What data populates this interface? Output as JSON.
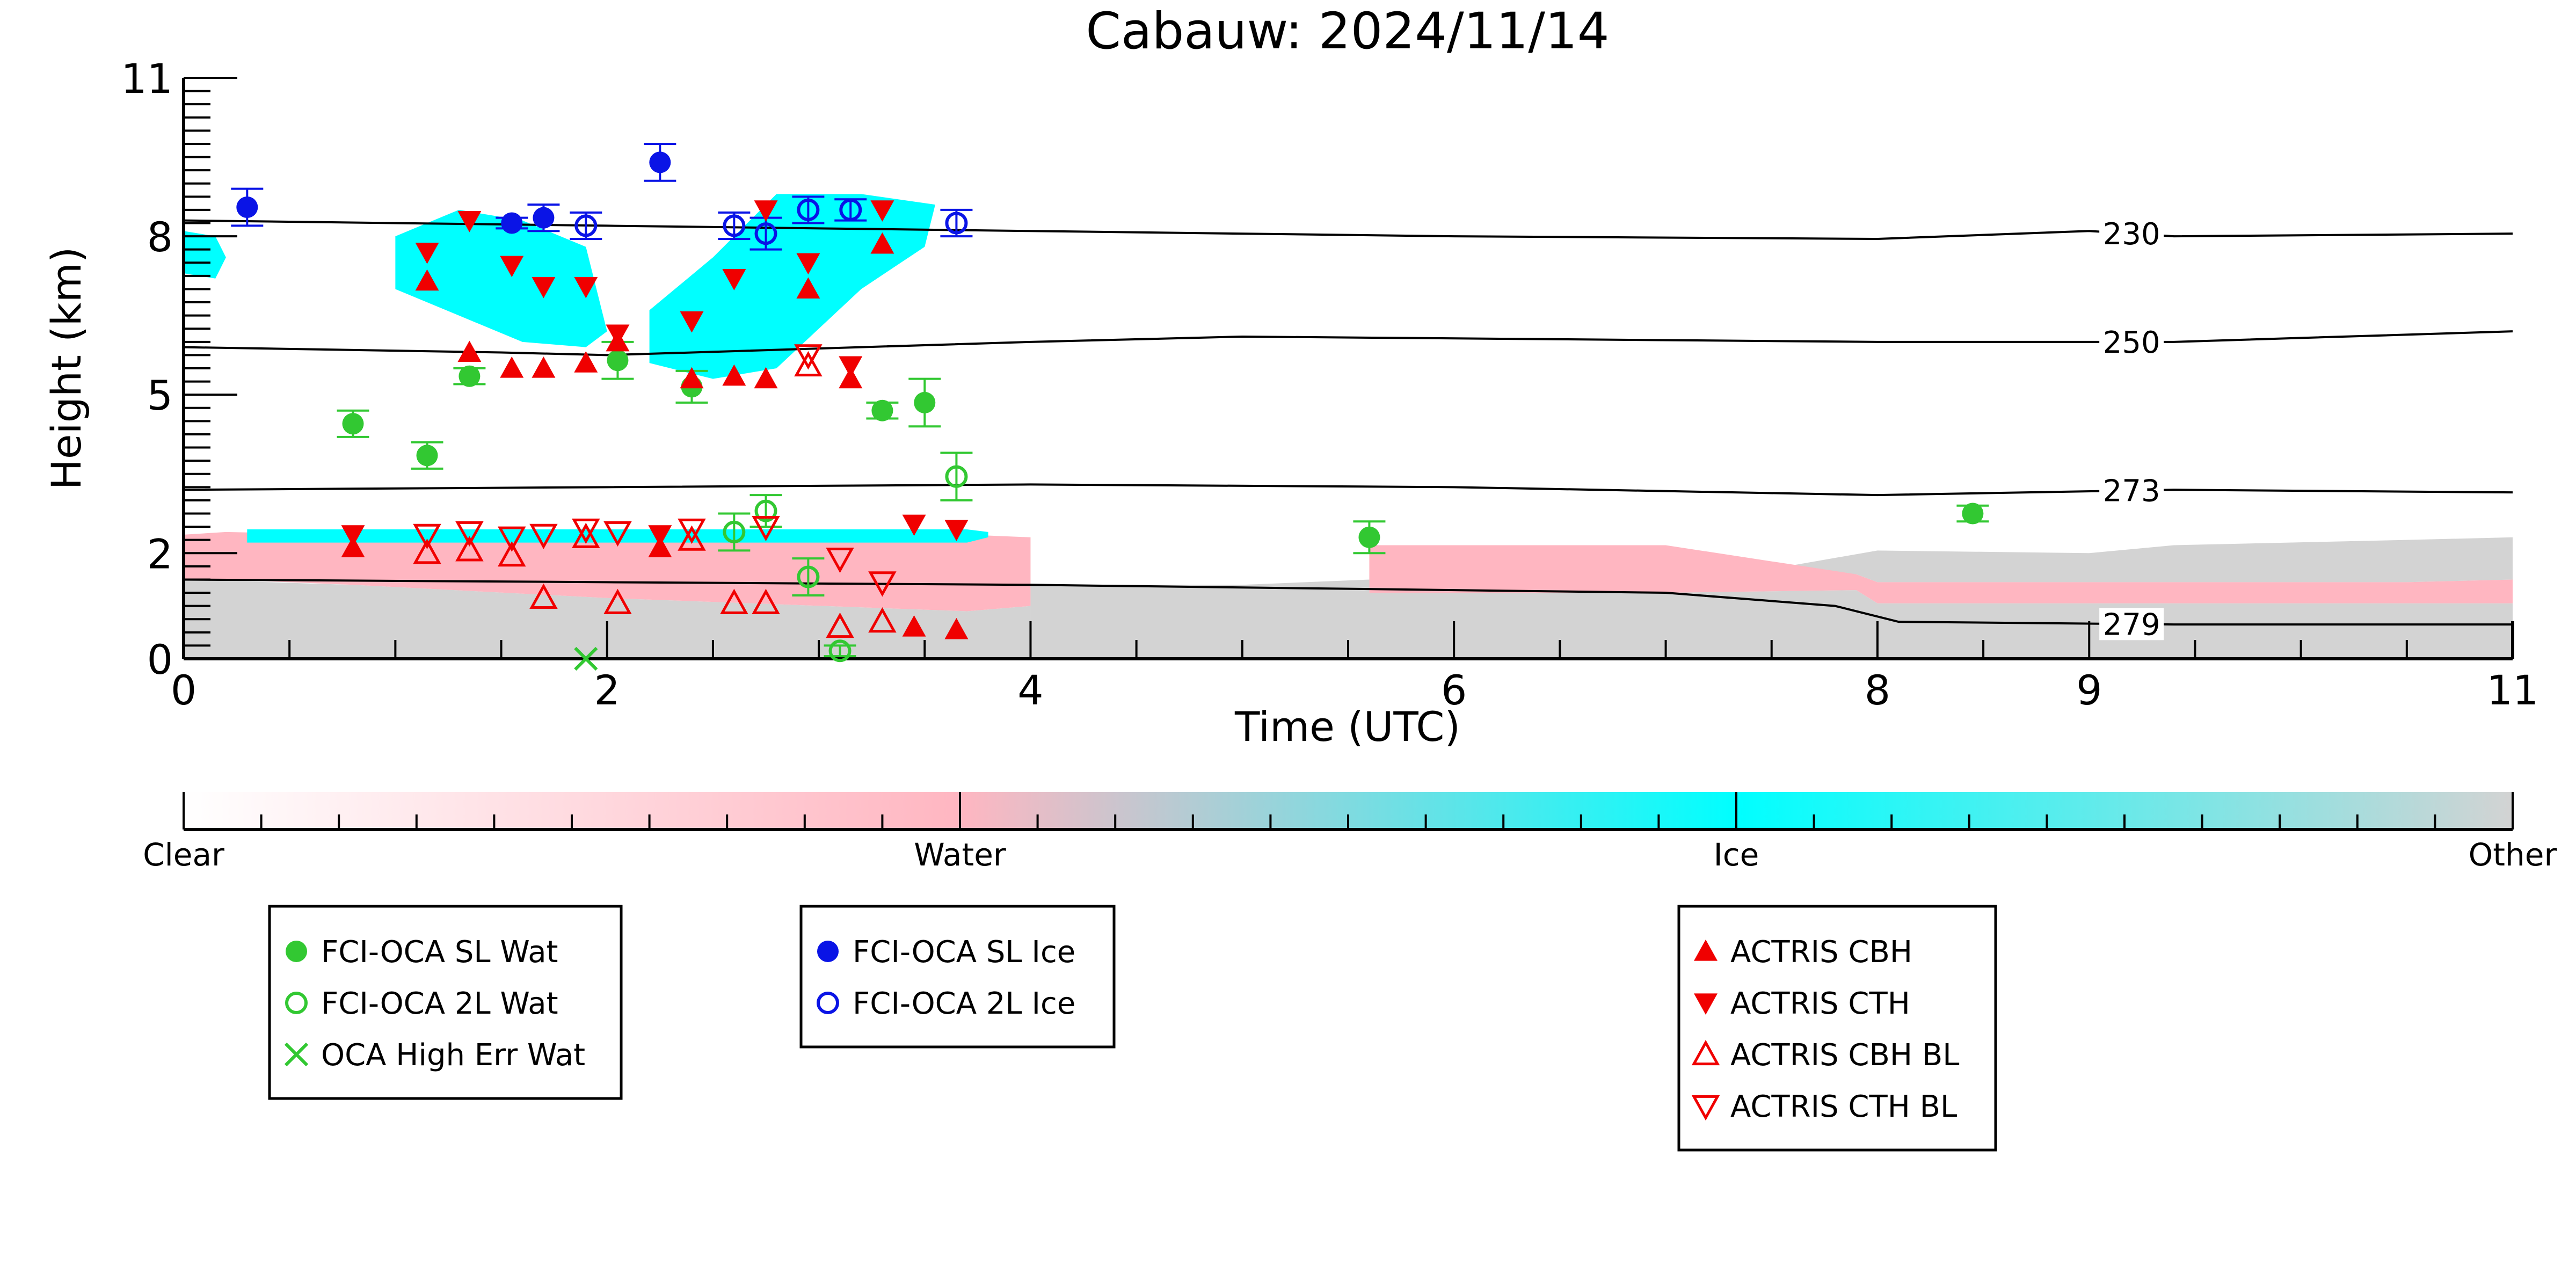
{
  "chart_data": {
    "type": "scatter",
    "title": "Cabauw: 2024/11/14",
    "xlabel": "Time (UTC)",
    "ylabel": "Height (km)",
    "xlim": [
      0,
      11
    ],
    "ylim": [
      0,
      11
    ],
    "x_ticks": [
      {
        "value": 0,
        "label": "0"
      },
      {
        "value": 2,
        "label": "2"
      },
      {
        "value": 4,
        "label": "4"
      },
      {
        "value": 6,
        "label": "6"
      },
      {
        "value": 8,
        "label": "8"
      },
      {
        "value": 9,
        "label": "9"
      },
      {
        "value": 11,
        "label": "11"
      }
    ],
    "y_ticks": [
      {
        "value": 0,
        "label": "0"
      },
      {
        "value": 2,
        "label": "2"
      },
      {
        "value": 5,
        "label": "5"
      },
      {
        "value": 8,
        "label": "8"
      },
      {
        "value": 11,
        "label": "11"
      }
    ],
    "colorbar": {
      "labels": [
        "Clear",
        "Water",
        "Ice",
        "Other"
      ],
      "colors": [
        "#ffffff",
        "#ffb6c1",
        "#00ffff",
        "#d3d3d3"
      ]
    },
    "contours": [
      {
        "label": "230",
        "x": [
          0,
          2,
          4,
          6,
          8,
          9,
          9.4,
          11
        ],
        "y": [
          8.3,
          8.2,
          8.1,
          8.0,
          7.95,
          8.1,
          8.0,
          8.05
        ]
      },
      {
        "label": "250",
        "x": [
          0,
          1.5,
          2,
          4,
          5,
          8,
          9.4,
          11
        ],
        "y": [
          5.9,
          5.8,
          5.75,
          6.0,
          6.1,
          6.0,
          6.0,
          6.2
        ]
      },
      {
        "label": "273",
        "x": [
          0,
          2,
          4,
          6,
          8,
          9.4,
          11
        ],
        "y": [
          3.2,
          3.25,
          3.3,
          3.25,
          3.1,
          3.2,
          3.15
        ]
      },
      {
        "label": "279",
        "x": [
          0,
          2,
          4,
          6,
          7,
          7.8,
          8.1,
          9.4,
          11
        ],
        "y": [
          1.5,
          1.45,
          1.4,
          1.3,
          1.25,
          1.0,
          0.7,
          0.65,
          0.65
        ]
      }
    ],
    "series": [
      {
        "name": "FCI-OCA SL Wat",
        "marker": "circle-filled",
        "color": "#32c832",
        "points": [
          {
            "x": 0.8,
            "y": 4.45,
            "err": 0.25
          },
          {
            "x": 1.15,
            "y": 3.85,
            "err": 0.25
          },
          {
            "x": 1.35,
            "y": 5.35,
            "err": 0.15
          },
          {
            "x": 2.05,
            "y": 5.65,
            "err": 0.35
          },
          {
            "x": 2.4,
            "y": 5.15,
            "err": 0.3
          },
          {
            "x": 3.3,
            "y": 4.7,
            "err": 0.15
          },
          {
            "x": 3.5,
            "y": 4.85,
            "err": 0.45
          },
          {
            "x": 5.6,
            "y": 2.3,
            "err": 0.3
          },
          {
            "x": 8.45,
            "y": 2.75,
            "err": 0.15
          }
        ]
      },
      {
        "name": "FCI-OCA 2L Wat",
        "marker": "circle-open",
        "color": "#32c832",
        "points": [
          {
            "x": 2.6,
            "y": 2.4,
            "err": 0.35
          },
          {
            "x": 2.75,
            "y": 2.8,
            "err": 0.3
          },
          {
            "x": 2.95,
            "y": 1.55,
            "err": 0.35
          },
          {
            "x": 3.1,
            "y": 0.15,
            "err": 0.1
          },
          {
            "x": 3.65,
            "y": 3.45,
            "err": 0.45
          }
        ]
      },
      {
        "name": "OCA High Err Wat",
        "marker": "x",
        "color": "#32c832",
        "points": [
          {
            "x": 1.9,
            "y": 0.0
          }
        ]
      },
      {
        "name": "FCI-OCA SL Ice",
        "marker": "circle-filled",
        "color": "#0a14e6",
        "points": [
          {
            "x": 0.3,
            "y": 8.55,
            "err": 0.35
          },
          {
            "x": 1.55,
            "y": 8.25,
            "err": 0.1
          },
          {
            "x": 1.7,
            "y": 8.35,
            "err": 0.25
          },
          {
            "x": 2.25,
            "y": 9.4,
            "err": 0.35
          }
        ]
      },
      {
        "name": "FCI-OCA 2L Ice",
        "marker": "circle-open",
        "color": "#0a14e6",
        "points": [
          {
            "x": 1.9,
            "y": 8.2,
            "err": 0.25
          },
          {
            "x": 2.6,
            "y": 8.2,
            "err": 0.25
          },
          {
            "x": 2.75,
            "y": 8.05,
            "err": 0.3
          },
          {
            "x": 2.95,
            "y": 8.5,
            "err": 0.25
          },
          {
            "x": 3.15,
            "y": 8.5,
            "err": 0.2
          },
          {
            "x": 3.65,
            "y": 8.25,
            "err": 0.25
          }
        ]
      },
      {
        "name": "ACTRIS CBH",
        "marker": "triangle-up-filled",
        "color": "#f00000",
        "x": [
          0.8,
          1.15,
          1.35,
          1.55,
          1.7,
          1.9,
          2.05,
          2.25,
          2.4,
          2.6,
          2.75,
          2.95,
          3.15,
          3.3,
          3.45,
          3.65
        ],
        "y": [
          2.1,
          7.15,
          5.8,
          5.5,
          5.5,
          5.6,
          6.0,
          2.1,
          5.3,
          5.35,
          5.3,
          7.0,
          5.3,
          7.85,
          0.6,
          0.55
        ]
      },
      {
        "name": "ACTRIS CTH",
        "marker": "triangle-down-filled",
        "color": "#f00000",
        "x": [
          0.8,
          1.15,
          1.35,
          1.55,
          1.7,
          1.9,
          2.05,
          2.25,
          2.4,
          2.6,
          2.75,
          2.95,
          3.15,
          3.3,
          3.45,
          3.65
        ],
        "y": [
          2.35,
          7.7,
          8.3,
          7.45,
          7.05,
          7.05,
          6.15,
          2.35,
          6.4,
          7.2,
          8.5,
          7.5,
          5.55,
          8.5,
          2.55,
          2.45
        ]
      },
      {
        "name": "ACTRIS CBH BL",
        "marker": "triangle-up-open",
        "color": "#f00000",
        "x": [
          1.15,
          1.35,
          1.55,
          1.7,
          1.9,
          2.05,
          2.4,
          2.6,
          2.75,
          2.95,
          3.1,
          3.3
        ],
        "y": [
          2.0,
          2.05,
          1.95,
          1.15,
          2.3,
          1.05,
          2.25,
          1.05,
          1.05,
          5.55,
          0.6,
          0.7
        ]
      },
      {
        "name": "ACTRIS CTH BL",
        "marker": "triangle-down-open",
        "color": "#f00000",
        "x": [
          1.15,
          1.35,
          1.55,
          1.7,
          1.9,
          2.05,
          2.4,
          2.75,
          2.95,
          3.1,
          3.3
        ],
        "y": [
          2.35,
          2.4,
          2.3,
          2.35,
          2.45,
          2.4,
          2.45,
          2.5,
          5.75,
          1.9,
          1.45
        ]
      }
    ],
    "cloud_mask": {
      "water_regions": [
        {
          "x": [
            0,
            0.2,
            0.8,
            2.0,
            3.7,
            4.0,
            4.0,
            3.7,
            2.0,
            0.8,
            0.2,
            0
          ],
          "y": [
            2.35,
            2.4,
            2.35,
            2.35,
            2.35,
            2.3,
            1.0,
            0.9,
            1.15,
            1.4,
            1.5,
            1.5
          ]
        },
        {
          "x": [
            5.6,
            7.0,
            7.9,
            8.0,
            9.0,
            10.5,
            11.0,
            11.0,
            10.5,
            9.0,
            8.0,
            7.9,
            7.0,
            5.6
          ],
          "y": [
            2.15,
            2.15,
            1.6,
            1.45,
            1.45,
            1.45,
            1.5,
            1.05,
            1.05,
            1.05,
            1.05,
            1.3,
            1.25,
            1.25
          ]
        }
      ],
      "ice_regions": [
        {
          "x": [
            1.0,
            1.3,
            1.6,
            1.9,
            2.0,
            1.9,
            1.6,
            1.3,
            1.0
          ],
          "y": [
            8.0,
            8.5,
            8.3,
            7.8,
            6.2,
            5.9,
            6.0,
            6.5,
            7.0
          ]
        },
        {
          "x": [
            2.2,
            2.5,
            2.8,
            3.2,
            3.55,
            3.5,
            3.2,
            2.8,
            2.5,
            2.2
          ],
          "y": [
            6.6,
            7.6,
            8.8,
            8.8,
            8.6,
            7.8,
            7.0,
            5.5,
            5.3,
            5.6
          ]
        },
        {
          "x": [
            0,
            0.15,
            0.2,
            0.15,
            0
          ],
          "y": [
            8.1,
            8.0,
            7.6,
            7.2,
            7.3
          ]
        },
        {
          "x": [
            0.3,
            3.7,
            3.8,
            3.8,
            3.7,
            0.3
          ],
          "y": [
            2.45,
            2.45,
            2.4,
            2.3,
            2.2,
            2.2
          ]
        }
      ],
      "other_regions": [
        {
          "x": [
            0,
            0.8,
            2.0,
            3.7,
            4.0,
            4.0,
            0
          ],
          "y": [
            1.5,
            1.4,
            1.15,
            0.9,
            1.0,
            0,
            0
          ]
        },
        {
          "x": [
            4.0,
            5.0,
            5.6,
            5.6,
            7.0,
            7.9,
            8.0,
            9.0,
            10.5,
            11.0,
            11.0,
            4.0
          ],
          "y": [
            1.4,
            1.4,
            1.5,
            1.25,
            1.25,
            1.3,
            1.05,
            1.05,
            1.05,
            1.05,
            0,
            0
          ]
        },
        {
          "x": [
            7.0,
            7.5,
            8.0,
            9.0,
            9.4,
            10.5,
            11.0,
            11.0,
            10.5,
            9.0,
            8.0,
            7.9
          ],
          "y": [
            1.6,
            1.7,
            2.05,
            2.0,
            2.15,
            2.25,
            2.3,
            1.5,
            1.45,
            1.45,
            1.45,
            1.6
          ]
        }
      ]
    }
  }
}
